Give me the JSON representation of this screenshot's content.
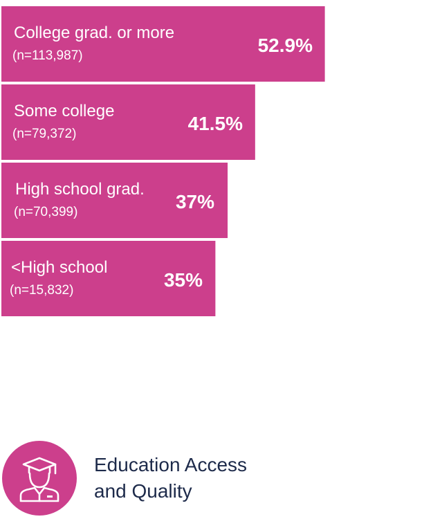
{
  "chart_data": {
    "type": "bar",
    "orientation": "horizontal",
    "categories": [
      "College grad. or more",
      "Some college",
      "High school grad.",
      "<High school"
    ],
    "sample_sizes": [
      "(n=113,987)",
      "(n=79,372)",
      "(n=70,399)",
      "(n=15,832)"
    ],
    "values": [
      52.9,
      41.5,
      37,
      35
    ],
    "value_labels": [
      "52.9%",
      "41.5%",
      "37%",
      "35%"
    ],
    "unit": "%",
    "grid": false,
    "legend": "none"
  },
  "footer": {
    "icon": "graduate-icon",
    "caption_line1": "Education Access",
    "caption_line2": "and Quality"
  },
  "colors": {
    "bar": "#cc3f8c",
    "badge": "#cc3f8c",
    "caption_text": "#1d2a4a"
  }
}
